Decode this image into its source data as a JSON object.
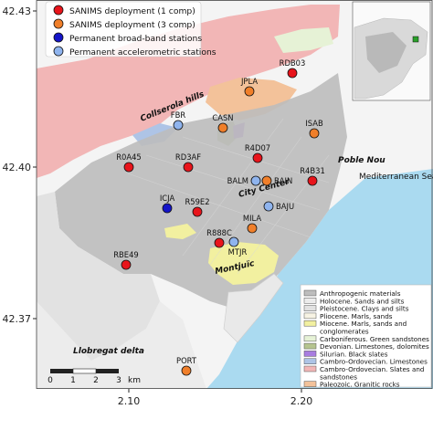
{
  "axes": {
    "y_ticks": [
      "42.43",
      "42.40",
      "42.37"
    ],
    "x_ticks": [
      "2.10",
      "2.20"
    ]
  },
  "legend": {
    "items": [
      {
        "label": "SANIMS deployment (1 comp)",
        "color": "#e8141b"
      },
      {
        "label": "SANIMS deployment (3 comp)",
        "color": "#f07f2a"
      },
      {
        "label": "Permanent broad-band stations",
        "color": "#1414c8"
      },
      {
        "label": "Permanent accelerometric stations",
        "color": "#8fb4ee"
      }
    ]
  },
  "geology": {
    "items": [
      {
        "label": "Anthropogenic materials",
        "color": "#bdbdbd"
      },
      {
        "label": "Holocene. Sands and silts",
        "color": "#ececec"
      },
      {
        "label": "Pleistocene. Clays and silts",
        "color": "#e2e2e2"
      },
      {
        "label": "Pliocene. Marls, sands",
        "color": "#f7f3e4"
      },
      {
        "label": "Miocene. Marls, sands and",
        "color": "#f2f0a0"
      },
      {
        "label": "conglomerates",
        "color": null
      },
      {
        "label": "Carboniferous. Green sandstones",
        "color": "#e6f2d6"
      },
      {
        "label": "Devonian. Limestones, dolomites",
        "color": "#b5c48f"
      },
      {
        "label": "Silurian. Black slates",
        "color": "#a87de0"
      },
      {
        "label": "Cambro-Ordovecian. Limestones",
        "color": "#aec4e6"
      },
      {
        "label": "Cambro-Ordovecian. Slates and",
        "color": "#f2b6b6"
      },
      {
        "label": "sandstones",
        "color": null
      },
      {
        "label": "Paleozoic. Granitic rocks",
        "color": "#f3c29a"
      }
    ]
  },
  "places": {
    "collserola": "Collserola hills",
    "poble_nou": "Poble Nou",
    "mediterranean": "Mediterranean Sea",
    "city_center": "City Center",
    "montjuic": "Montjuïc",
    "llobregat": "Llobregat delta"
  },
  "stations": [
    {
      "code": "RDB03",
      "type": "sanims_1"
    },
    {
      "code": "JPLA",
      "type": "sanims_3"
    },
    {
      "code": "CASN",
      "type": "sanims_3"
    },
    {
      "code": "ISAB",
      "type": "sanims_3"
    },
    {
      "code": "FBR",
      "type": "accelerometric"
    },
    {
      "code": "R4D07",
      "type": "sanims_1"
    },
    {
      "code": "R0A45",
      "type": "sanims_1"
    },
    {
      "code": "RD3AF",
      "type": "sanims_1"
    },
    {
      "code": "BAIN",
      "type": "sanims_3"
    },
    {
      "code": "BALM",
      "type": "accelerometric"
    },
    {
      "code": "R4B31",
      "type": "sanims_1"
    },
    {
      "code": "ICJA",
      "type": "broadband"
    },
    {
      "code": "R59E2",
      "type": "sanims_1"
    },
    {
      "code": "BAJU",
      "type": "accelerometric"
    },
    {
      "code": "MILA",
      "type": "sanims_3"
    },
    {
      "code": "R888C",
      "type": "sanims_1"
    },
    {
      "code": "MTJR",
      "type": "accelerometric"
    },
    {
      "code": "RBE49",
      "type": "sanims_1"
    },
    {
      "code": "PORT",
      "type": "sanims_3"
    }
  ],
  "scalebar": {
    "ticks": [
      "0",
      "1",
      "2",
      "3"
    ],
    "unit": "km"
  }
}
